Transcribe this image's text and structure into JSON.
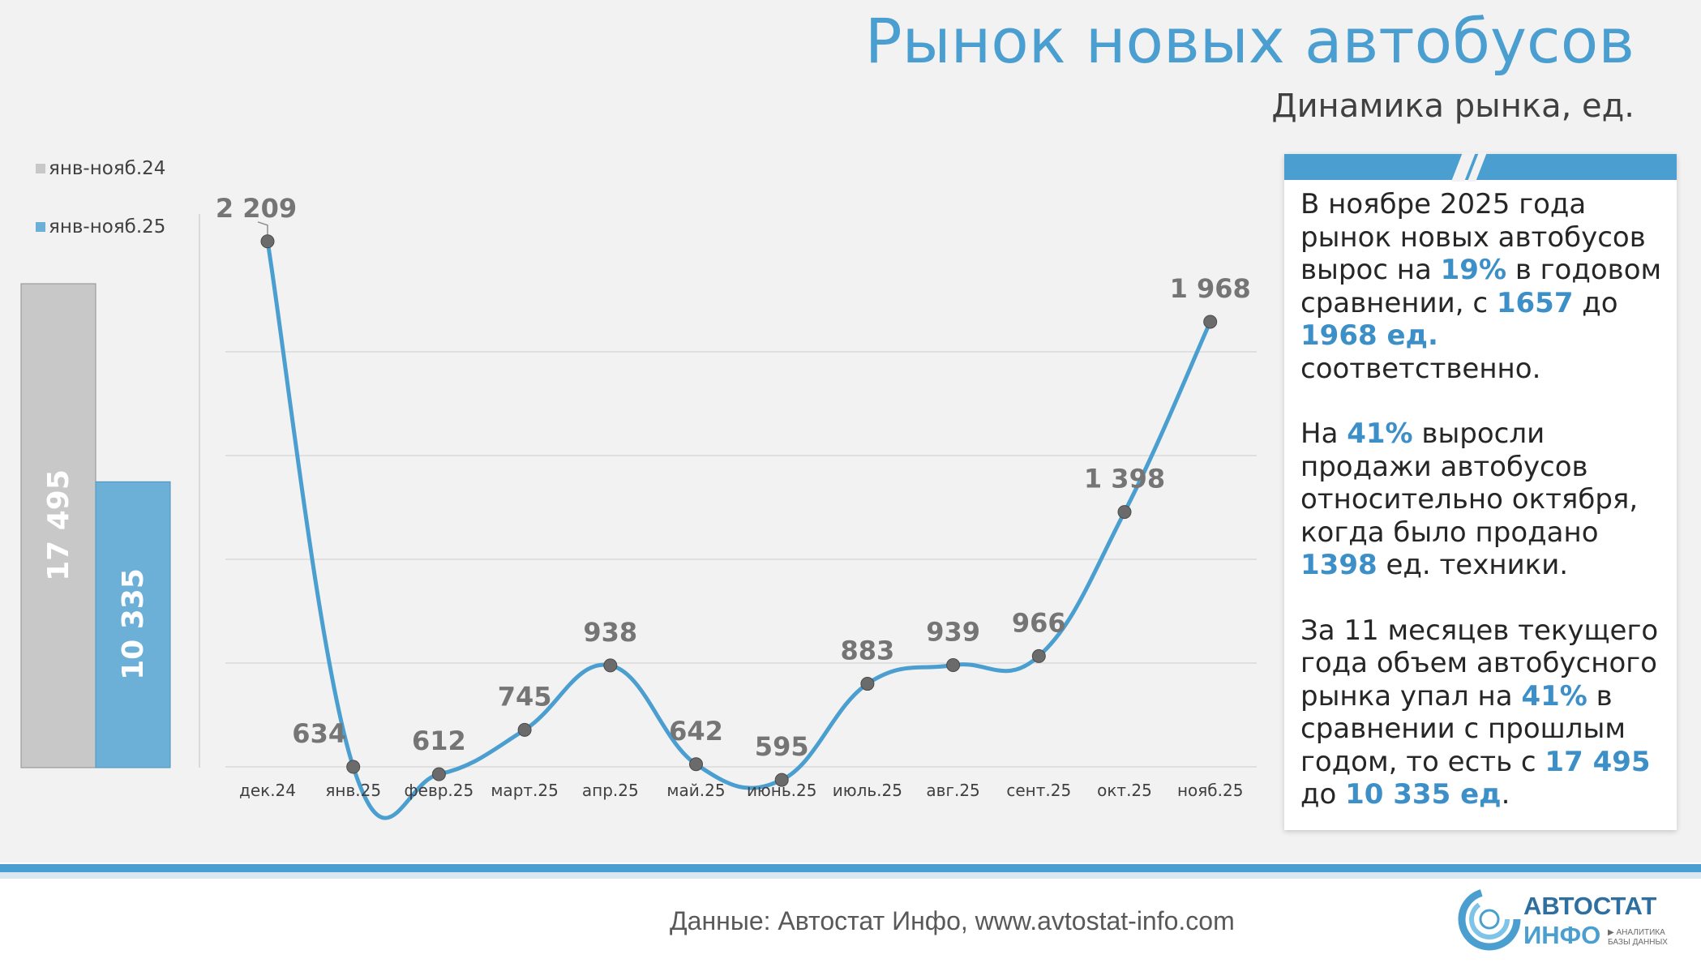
{
  "header": {
    "title": "Рынок новых автобусов",
    "subtitle": "Динамика рынка, ед."
  },
  "colors": {
    "accent": "#4a9fd0",
    "bar_2024": "#c8c8c8",
    "bar_2025": "#6cb0d8",
    "marker": "#6b6b6b"
  },
  "legend": {
    "items": [
      {
        "label": "янв-нояб.24"
      },
      {
        "label": "янв-нояб.25"
      }
    ]
  },
  "chart_data": [
    {
      "type": "bar",
      "categories": [
        "янв-нояб.24",
        "янв-нояб.25"
      ],
      "values": [
        17495,
        10335
      ],
      "labels": [
        "17 495",
        "10 335"
      ]
    },
    {
      "type": "line",
      "categories": [
        "дек.24",
        "янв.25",
        "февр.25",
        "март.25",
        "апр.25",
        "май.25",
        "июнь.25",
        "июль.25",
        "авг.25",
        "сент.25",
        "окт.25",
        "нояб.25"
      ],
      "values": [
        2209,
        634,
        612,
        745,
        938,
        642,
        595,
        883,
        939,
        966,
        1398,
        1968
      ],
      "labels": [
        "2 209",
        "634",
        "612",
        "745",
        "938",
        "642",
        "595",
        "883",
        "939",
        "966",
        "1 398",
        "1 968"
      ],
      "grid": true
    }
  ],
  "panel": {
    "p1": {
      "t1": "В ноябре 2025 года рынок новых автобусов вырос на ",
      "h1": "19%",
      "t2": " в годовом сравнении, с ",
      "h2": "1657",
      "t3": " до ",
      "h3": "1968 ед.",
      "t4": " соответственно."
    },
    "p2": {
      "t1": "На ",
      "h1": "41%",
      "t2": " выросли продажи автобусов относительно октября, когда было продано ",
      "h2": "1398",
      "t3": " ед. техники."
    },
    "p3": {
      "t1": "За 11 месяцев текущего года объем автобусного рынка упал на ",
      "h1": "41%",
      "t2": " в сравнении с прошлым годом, то есть с ",
      "h2": "17 495",
      "t3": " до ",
      "h3": "10 335  ед",
      "t4": "."
    }
  },
  "footer": {
    "source": "Данные: Автостат Инфо, www.avtostat-info.com",
    "logo_top": "АВТОСТАТ",
    "logo_bottom": "ИНФО",
    "logo_tag1": "▶ АНАЛИТИКА",
    "logo_tag2": "БАЗЫ ДАННЫХ"
  }
}
